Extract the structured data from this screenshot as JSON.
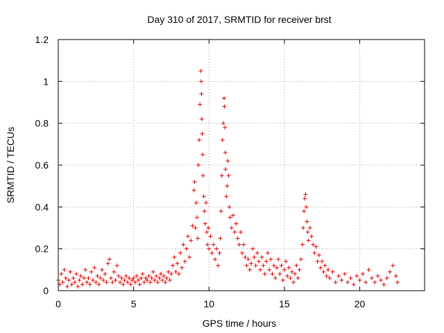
{
  "chart_data": {
    "type": "scatter",
    "title": "Day 310 of 2017, SRMTID for receiver brst",
    "xlabel": "GPS time / hours",
    "ylabel": "SRMTID / TECUs",
    "xlim": [
      0,
      24.3
    ],
    "ylim": [
      0,
      1.2
    ],
    "xticks": [
      0,
      5,
      10,
      15,
      20
    ],
    "xtick_labels": [
      "0",
      "5",
      "10",
      "15",
      "20"
    ],
    "yticks": [
      0,
      0.2,
      0.4,
      0.6,
      0.8,
      1,
      1.2
    ],
    "ytick_labels": [
      "0",
      "0.2",
      "0.4",
      "0.6",
      "0.8",
      "1",
      "1.2"
    ],
    "grid": true,
    "marker": "+",
    "color": "#e00000",
    "series": [
      {
        "name": "SRMTID",
        "points": [
          [
            0.0,
            0.05
          ],
          [
            0.1,
            0.03
          ],
          [
            0.2,
            0.08
          ],
          [
            0.3,
            0.04
          ],
          [
            0.4,
            0.1
          ],
          [
            0.5,
            0.06
          ],
          [
            0.6,
            0.02
          ],
          [
            0.7,
            0.05
          ],
          [
            0.8,
            0.09
          ],
          [
            0.9,
            0.03
          ],
          [
            1.0,
            0.06
          ],
          [
            1.1,
            0.04
          ],
          [
            1.2,
            0.08
          ],
          [
            1.3,
            0.02
          ],
          [
            1.4,
            0.05
          ],
          [
            1.5,
            0.07
          ],
          [
            1.6,
            0.03
          ],
          [
            1.7,
            0.06
          ],
          [
            1.8,
            0.1
          ],
          [
            1.9,
            0.04
          ],
          [
            2.0,
            0.06
          ],
          [
            2.1,
            0.03
          ],
          [
            2.2,
            0.09
          ],
          [
            2.3,
            0.05
          ],
          [
            2.4,
            0.11
          ],
          [
            2.5,
            0.04
          ],
          [
            2.6,
            0.07
          ],
          [
            2.7,
            0.03
          ],
          [
            2.8,
            0.06
          ],
          [
            2.9,
            0.1
          ],
          [
            3.0,
            0.05
          ],
          [
            3.1,
            0.08
          ],
          [
            3.2,
            0.04
          ],
          [
            3.3,
            0.13
          ],
          [
            3.4,
            0.15
          ],
          [
            3.5,
            0.06
          ],
          [
            3.6,
            0.04
          ],
          [
            3.7,
            0.09
          ],
          [
            3.8,
            0.05
          ],
          [
            3.9,
            0.12
          ],
          [
            4.0,
            0.07
          ],
          [
            4.1,
            0.04
          ],
          [
            4.2,
            0.06
          ],
          [
            4.3,
            0.03
          ],
          [
            4.4,
            0.05
          ],
          [
            4.5,
            0.07
          ],
          [
            4.6,
            0.04
          ],
          [
            4.7,
            0.06
          ],
          [
            4.8,
            0.03
          ],
          [
            4.9,
            0.05
          ],
          [
            5.0,
            0.06
          ],
          [
            5.1,
            0.04
          ],
          [
            5.2,
            0.07
          ],
          [
            5.3,
            0.05
          ],
          [
            5.4,
            0.03
          ],
          [
            5.5,
            0.06
          ],
          [
            5.6,
            0.08
          ],
          [
            5.7,
            0.04
          ],
          [
            5.8,
            0.06
          ],
          [
            5.9,
            0.05
          ],
          [
            6.0,
            0.07
          ],
          [
            6.1,
            0.04
          ],
          [
            6.2,
            0.06
          ],
          [
            6.3,
            0.09
          ],
          [
            6.4,
            0.05
          ],
          [
            6.5,
            0.07
          ],
          [
            6.6,
            0.04
          ],
          [
            6.7,
            0.06
          ],
          [
            6.8,
            0.08
          ],
          [
            6.9,
            0.05
          ],
          [
            7.0,
            0.07
          ],
          [
            7.1,
            0.04
          ],
          [
            7.2,
            0.06
          ],
          [
            7.3,
            0.09
          ],
          [
            7.4,
            0.05
          ],
          [
            7.5,
            0.08
          ],
          [
            7.6,
            0.12
          ],
          [
            7.7,
            0.16
          ],
          [
            7.8,
            0.09
          ],
          [
            7.9,
            0.13
          ],
          [
            8.0,
            0.08
          ],
          [
            8.1,
            0.18
          ],
          [
            8.2,
            0.11
          ],
          [
            8.3,
            0.22
          ],
          [
            8.4,
            0.14
          ],
          [
            8.5,
            0.2
          ],
          [
            8.6,
            0.26
          ],
          [
            8.7,
            0.16
          ],
          [
            8.8,
            0.24
          ],
          [
            8.9,
            0.31
          ],
          [
            9.0,
            0.48
          ],
          [
            9.05,
            0.52
          ],
          [
            9.1,
            0.3
          ],
          [
            9.15,
            0.42
          ],
          [
            9.2,
            0.35
          ],
          [
            9.25,
            0.25
          ],
          [
            9.3,
            0.6
          ],
          [
            9.35,
            0.72
          ],
          [
            9.4,
            0.89
          ],
          [
            9.45,
            1.05
          ],
          [
            9.48,
            1.0
          ],
          [
            9.5,
            0.94
          ],
          [
            9.52,
            0.82
          ],
          [
            9.55,
            0.75
          ],
          [
            9.58,
            0.65
          ],
          [
            9.6,
            0.55
          ],
          [
            9.65,
            0.45
          ],
          [
            9.7,
            0.38
          ],
          [
            9.75,
            0.32
          ],
          [
            9.8,
            0.42
          ],
          [
            9.85,
            0.28
          ],
          [
            9.9,
            0.22
          ],
          [
            9.95,
            0.3
          ],
          [
            10.0,
            0.2
          ],
          [
            10.1,
            0.26
          ],
          [
            10.2,
            0.18
          ],
          [
            10.3,
            0.22
          ],
          [
            10.4,
            0.15
          ],
          [
            10.5,
            0.2
          ],
          [
            10.6,
            0.12
          ],
          [
            10.7,
            0.18
          ],
          [
            10.75,
            0.25
          ],
          [
            10.8,
            0.38
          ],
          [
            10.85,
            0.55
          ],
          [
            10.9,
            0.72
          ],
          [
            10.95,
            0.8
          ],
          [
            11.0,
            0.92
          ],
          [
            11.02,
            0.88
          ],
          [
            11.05,
            0.78
          ],
          [
            11.08,
            0.66
          ],
          [
            11.1,
            0.58
          ],
          [
            11.15,
            0.45
          ],
          [
            11.2,
            0.5
          ],
          [
            11.25,
            0.62
          ],
          [
            11.3,
            0.55
          ],
          [
            11.35,
            0.4
          ],
          [
            11.4,
            0.35
          ],
          [
            11.5,
            0.3
          ],
          [
            11.6,
            0.36
          ],
          [
            11.7,
            0.28
          ],
          [
            11.8,
            0.32
          ],
          [
            11.9,
            0.25
          ],
          [
            12.0,
            0.22
          ],
          [
            12.1,
            0.28
          ],
          [
            12.2,
            0.18
          ],
          [
            12.3,
            0.22
          ],
          [
            12.4,
            0.16
          ],
          [
            12.5,
            0.12
          ],
          [
            12.6,
            0.15
          ],
          [
            12.7,
            0.1
          ],
          [
            12.8,
            0.13
          ],
          [
            12.9,
            0.2
          ],
          [
            13.0,
            0.16
          ],
          [
            13.1,
            0.12
          ],
          [
            13.2,
            0.18
          ],
          [
            13.3,
            0.14
          ],
          [
            13.4,
            0.1
          ],
          [
            13.5,
            0.16
          ],
          [
            13.6,
            0.12
          ],
          [
            13.7,
            0.08
          ],
          [
            13.8,
            0.14
          ],
          [
            13.9,
            0.18
          ],
          [
            14.0,
            0.1
          ],
          [
            14.1,
            0.15
          ],
          [
            14.2,
            0.08
          ],
          [
            14.3,
            0.12
          ],
          [
            14.4,
            0.06
          ],
          [
            14.5,
            0.11
          ],
          [
            14.6,
            0.15
          ],
          [
            14.7,
            0.08
          ],
          [
            14.8,
            0.12
          ],
          [
            14.9,
            0.05
          ],
          [
            15.0,
            0.1
          ],
          [
            15.1,
            0.14
          ],
          [
            15.2,
            0.07
          ],
          [
            15.3,
            0.11
          ],
          [
            15.4,
            0.06
          ],
          [
            15.5,
            0.09
          ],
          [
            15.6,
            0.04
          ],
          [
            15.7,
            0.08
          ],
          [
            15.8,
            0.12
          ],
          [
            15.9,
            0.06
          ],
          [
            16.0,
            0.1
          ],
          [
            16.1,
            0.15
          ],
          [
            16.2,
            0.22
          ],
          [
            16.25,
            0.3
          ],
          [
            16.3,
            0.38
          ],
          [
            16.35,
            0.44
          ],
          [
            16.4,
            0.46
          ],
          [
            16.45,
            0.4
          ],
          [
            16.5,
            0.33
          ],
          [
            16.55,
            0.28
          ],
          [
            16.6,
            0.24
          ],
          [
            16.7,
            0.3
          ],
          [
            16.8,
            0.26
          ],
          [
            16.9,
            0.22
          ],
          [
            17.0,
            0.18
          ],
          [
            17.1,
            0.21
          ],
          [
            17.2,
            0.14
          ],
          [
            17.3,
            0.17
          ],
          [
            17.4,
            0.11
          ],
          [
            17.5,
            0.14
          ],
          [
            17.6,
            0.09
          ],
          [
            17.7,
            0.12
          ],
          [
            17.8,
            0.07
          ],
          [
            17.9,
            0.1
          ],
          [
            18.0,
            0.06
          ],
          [
            18.2,
            0.09
          ],
          [
            18.4,
            0.04
          ],
          [
            18.6,
            0.07
          ],
          [
            18.8,
            0.05
          ],
          [
            19.0,
            0.08
          ],
          [
            19.2,
            0.04
          ],
          [
            19.4,
            0.06
          ],
          [
            19.6,
            0.03
          ],
          [
            19.8,
            0.07
          ],
          [
            20.0,
            0.05
          ],
          [
            20.2,
            0.08
          ],
          [
            20.4,
            0.04
          ],
          [
            20.6,
            0.1
          ],
          [
            20.8,
            0.06
          ],
          [
            21.0,
            0.04
          ],
          [
            21.2,
            0.07
          ],
          [
            21.4,
            0.05
          ],
          [
            21.6,
            0.03
          ],
          [
            21.8,
            0.06
          ],
          [
            22.0,
            0.09
          ],
          [
            22.2,
            0.12
          ],
          [
            22.4,
            0.07
          ],
          [
            22.5,
            0.04
          ]
        ]
      }
    ]
  }
}
